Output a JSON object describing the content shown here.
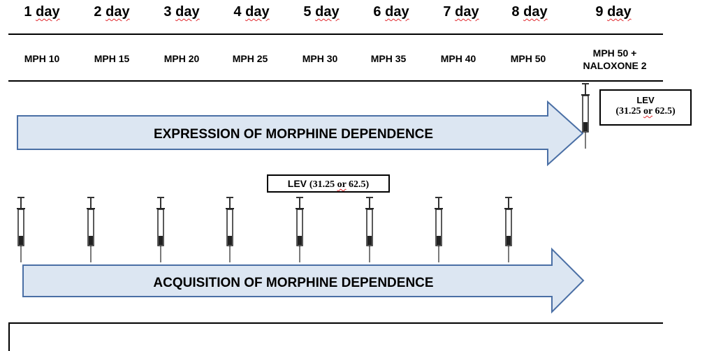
{
  "days": [
    {
      "num": "1",
      "word": "day"
    },
    {
      "num": "2",
      "word": "day"
    },
    {
      "num": "3",
      "word": "day"
    },
    {
      "num": "4",
      "word": "day"
    },
    {
      "num": "5",
      "word": "day"
    },
    {
      "num": "6",
      "word": "day"
    },
    {
      "num": "7",
      "word": "day"
    },
    {
      "num": "8",
      "word": "day"
    },
    {
      "num": "9",
      "word": "day"
    }
  ],
  "doses": [
    "MPH 10",
    "MPH 15",
    "MPH 20",
    "MPH 25",
    "MPH 30",
    "MPH 35",
    "MPH 40",
    "MPH 50"
  ],
  "dose_day9": {
    "line1": "MPH 50 +",
    "line2": "NALOXONE 2"
  },
  "lev_box_top": {
    "line1": "LEV",
    "paren_open": "(31.25 ",
    "or": "or",
    "rest": " 62.5)"
  },
  "lev_box_mid": {
    "lev": "LEV ",
    "paren_open": "(31.25 ",
    "or": "or",
    "rest": " 62.5)"
  },
  "arrow_expression": "EXPRESSION OF MORPHINE DEPENDENCE",
  "arrow_acquisition": "ACQUISITION OF MORPHINE DEPENDENCE",
  "colors": {
    "arrow_fill": "#dce6f2",
    "arrow_stroke": "#4a6fa5",
    "spellcheck": "#e0282e"
  },
  "icons": {
    "syringe": "syringe-icon",
    "arrow": "right-arrow"
  }
}
